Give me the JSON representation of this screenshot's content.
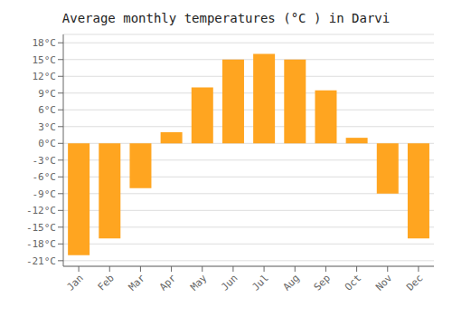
{
  "chart_data": {
    "type": "bar",
    "title": "Average monthly temperatures (°C ) in Darvi",
    "categories": [
      "Jan",
      "Feb",
      "Mar",
      "Apr",
      "May",
      "Jun",
      "Jul",
      "Aug",
      "Sep",
      "Oct",
      "Nov",
      "Dec"
    ],
    "values": [
      -20,
      -17,
      -8,
      2,
      10,
      15,
      16,
      15,
      9.5,
      1,
      -9,
      -17
    ],
    "color": "#FFA520",
    "ylim": [
      -22,
      19.5
    ],
    "yticks": [
      {
        "value": -21,
        "label": "-21°C"
      },
      {
        "value": -18,
        "label": "-18°C"
      },
      {
        "value": -15,
        "label": "-15°C"
      },
      {
        "value": -12,
        "label": "-12°C"
      },
      {
        "value": -9,
        "label": "-9°C"
      },
      {
        "value": -6,
        "label": "-6°C"
      },
      {
        "value": -3,
        "label": "-3°C"
      },
      {
        "value": 0,
        "label": "0°C"
      },
      {
        "value": 3,
        "label": "3°C"
      },
      {
        "value": 6,
        "label": "6°C"
      },
      {
        "value": 9,
        "label": "9°C"
      },
      {
        "value": 12,
        "label": "12°C"
      },
      {
        "value": 15,
        "label": "15°C"
      },
      {
        "value": 18,
        "label": "18°C"
      }
    ],
    "grid": true
  }
}
